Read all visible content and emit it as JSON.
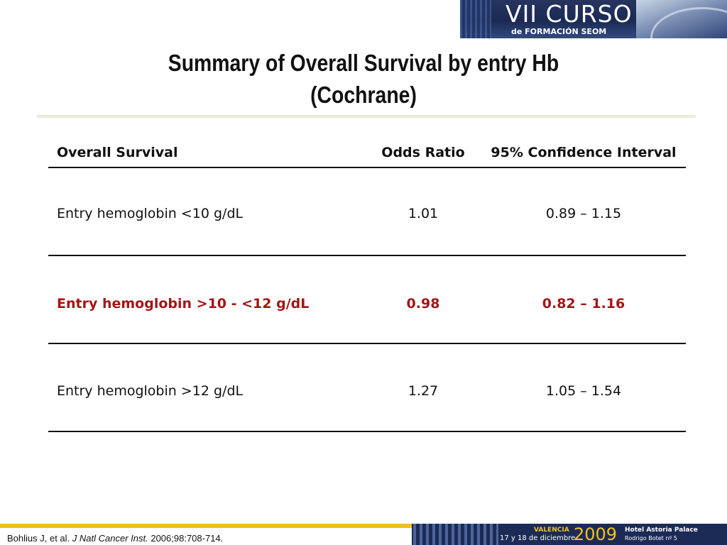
{
  "banner": {
    "line1": "VII CURSO",
    "line2": "de FORMACIÓN SEOM"
  },
  "title": {
    "line1": "Summary of Overall Survival by entry Hb",
    "line2": "(Cochrane)"
  },
  "table": {
    "headers": [
      "Overall Survival",
      "Odds Ratio",
      "95% Confidence Interval"
    ],
    "rows": [
      {
        "label": "Entry hemoglobin <10 g/dL",
        "odds_ratio": "1.01",
        "ci": "0.89 – 1.15",
        "highlight": false
      },
      {
        "label": "Entry hemoglobin >10 - <12 g/dL",
        "odds_ratio": "0.98",
        "ci": "0.82 – 1.16",
        "highlight": true
      },
      {
        "label": "Entry hemoglobin >12 g/dL",
        "odds_ratio": "1.27",
        "ci": "1.05 – 1.54",
        "highlight": false
      }
    ]
  },
  "footer": {
    "ref_author": "Bohlius J, et al.",
    "ref_journal": "J Natl Cancer Inst.",
    "ref_detail": "2006;98:708-714.",
    "city": "VALENCIA",
    "dates": "17 y 18 de diciembre",
    "year": "2009",
    "hotel": "Hotel Astoria Palace",
    "address": "Rodrigo Botet nº 5"
  },
  "colors": {
    "highlight": "#a21616",
    "banner": "#1c2b56",
    "accent": "#f0bf1a"
  }
}
